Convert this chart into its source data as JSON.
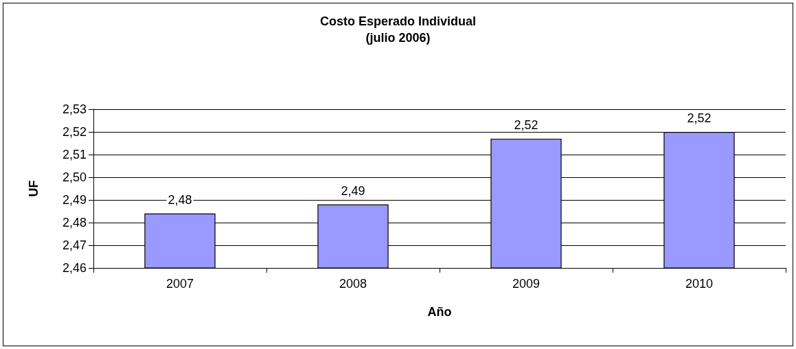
{
  "chart_data": {
    "type": "bar",
    "title": "Costo Esperado Individual",
    "subtitle": "(julio 2006)",
    "xlabel": "Año",
    "ylabel": "UF",
    "categories": [
      "2007",
      "2008",
      "2009",
      "2010"
    ],
    "values": [
      2.484,
      2.488,
      2.517,
      2.52
    ],
    "value_labels": [
      "2,48",
      "2,49",
      "2,52",
      "2,52"
    ],
    "color": "#9999ff",
    "ylim": [
      2.46,
      2.53
    ],
    "yticks": [
      {
        "value": 2.46,
        "label": "2,46"
      },
      {
        "value": 2.47,
        "label": "2,47"
      },
      {
        "value": 2.48,
        "label": "2,48"
      },
      {
        "value": 2.49,
        "label": "2,49"
      },
      {
        "value": 2.5,
        "label": "2,50"
      },
      {
        "value": 2.51,
        "label": "2,51"
      },
      {
        "value": 2.52,
        "label": "2,52"
      },
      {
        "value": 2.53,
        "label": "2,53"
      }
    ],
    "grid": "y"
  }
}
